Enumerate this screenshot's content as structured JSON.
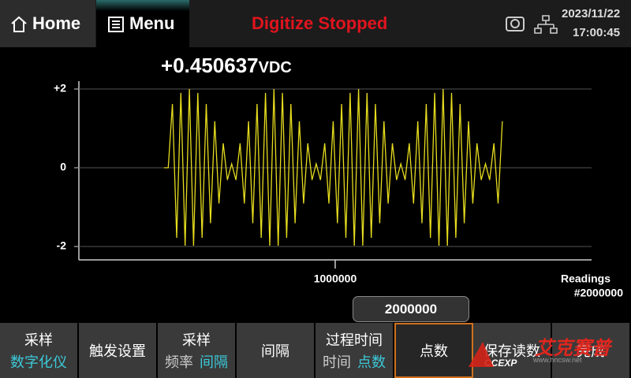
{
  "header": {
    "home": "Home",
    "menu": "Menu",
    "status": "Digitize Stopped",
    "date": "2023/11/22",
    "time": "17:00:45"
  },
  "reading": {
    "value": "+0.450637",
    "unit": "VDC"
  },
  "chart_data": {
    "type": "line",
    "x": [
      332000,
      348500,
      365000,
      381500,
      398000,
      414500,
      431000,
      447500,
      464000,
      480500,
      497000,
      513500,
      530000,
      546500,
      563000,
      579500,
      596000,
      612500,
      629000,
      645500,
      662000,
      678500,
      695000,
      711500,
      728000,
      744500,
      761000,
      777500,
      794000,
      810500,
      827000,
      843500,
      860000,
      876500,
      893000,
      909500,
      926000,
      942500,
      959000,
      975500,
      992000,
      1008500,
      1025000,
      1041500,
      1058000,
      1074500,
      1091000,
      1107500,
      1124000,
      1140500,
      1157000,
      1173500,
      1190000,
      1206500,
      1223000,
      1239500,
      1256000,
      1272500,
      1289000,
      1305500,
      1322000,
      1338500,
      1355000,
      1371500,
      1388000,
      1404500,
      1421000,
      1437500,
      1454000,
      1470500,
      1487000,
      1503500,
      1520000,
      1536500,
      1553000,
      1569500,
      1586000,
      1602500,
      1619000,
      1635500,
      1652000
    ],
    "series": [
      {
        "color": "#e6dc1e",
        "values": [
          0,
          0,
          1.62,
          -1.78,
          1.9,
          -1.98,
          2,
          -1.98,
          1.9,
          -1.78,
          1.62,
          -1.41,
          1.18,
          -0.91,
          0.62,
          -0.31,
          0.1,
          -0.31,
          0.62,
          -0.91,
          1.18,
          -1.41,
          1.62,
          -1.78,
          1.9,
          -1.98,
          2,
          -1.98,
          1.9,
          -1.78,
          1.62,
          -1.41,
          1.18,
          -0.91,
          0.62,
          -0.31,
          0.1,
          -0.31,
          0.62,
          -0.91,
          1.18,
          -1.41,
          1.62,
          -1.78,
          1.9,
          -1.98,
          2,
          -1.98,
          1.9,
          -1.78,
          1.62,
          -1.41,
          1.18,
          -0.91,
          0.62,
          -0.31,
          0.1,
          -0.31,
          0.62,
          -0.91,
          1.18,
          -1.41,
          1.62,
          -1.78,
          1.9,
          -1.98,
          2,
          -1.98,
          1.9,
          -1.78,
          1.62,
          -1.41,
          1.18,
          -0.91,
          0.62,
          -0.31,
          0.1,
          -0.31,
          0.62,
          -0.91,
          1.18
        ]
      }
    ],
    "xlim": [
      0,
      2000000
    ],
    "ylim": [
      -2.2,
      2.2
    ],
    "xticks": [
      1000000
    ],
    "yticks": [
      {
        "value": 2,
        "label": "+2"
      },
      0,
      -2
    ],
    "grid": true,
    "x_label": "Readings",
    "x_count": "#2000000"
  },
  "input_box": "2000000",
  "softkeys": [
    {
      "label": "采样",
      "options": [
        "数字化仪"
      ],
      "selected": 0
    },
    {
      "label": "触发设置"
    },
    {
      "label": "采样",
      "options": [
        "频率",
        "间隔"
      ],
      "selected": 1
    },
    {
      "label": "间隔"
    },
    {
      "label": "过程时间",
      "options": [
        "时间",
        "点数"
      ],
      "selected": 1
    },
    {
      "label": "点数",
      "highlighted": true
    },
    {
      "label": "保存读数"
    },
    {
      "label": "完成"
    }
  ],
  "watermark": {
    "brand": "艾克赛普",
    "logo": "CCEXP",
    "url": "www.hncsw.net"
  }
}
